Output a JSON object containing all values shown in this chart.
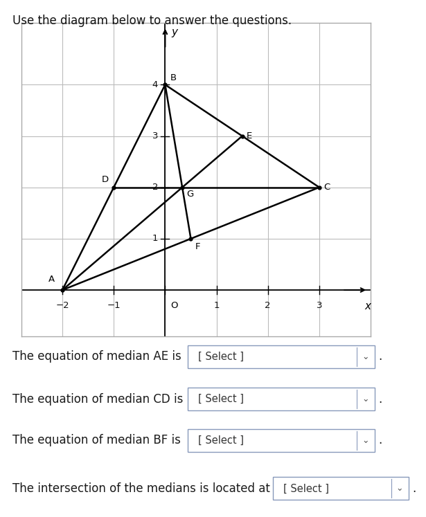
{
  "title": "Use the diagram below to answer the questions.",
  "triangle": {
    "A": [
      -2,
      0
    ],
    "B": [
      0,
      4
    ],
    "C": [
      3,
      2
    ]
  },
  "midpoints": {
    "D": [
      -1,
      2
    ],
    "E": [
      1.5,
      3
    ],
    "F": [
      0.5,
      1
    ]
  },
  "centroid_G": [
    0.3333,
    2.0
  ],
  "xlim": [
    -2.8,
    4.0
  ],
  "ylim": [
    -0.9,
    5.2
  ],
  "xticks": [
    -2,
    -1,
    0,
    1,
    2,
    3
  ],
  "yticks": [
    1,
    2,
    3,
    4
  ],
  "xlabel": "x",
  "ylabel": "y",
  "grid_color": "#bbbbbb",
  "line_color": "#000000",
  "label_fontsize": 9.5,
  "axis_label_fontsize": 11,
  "bg_color": "#ffffff",
  "plot_bg_color": "#ffffff",
  "questions": [
    "The equation of median AE is",
    "The equation of median CD is",
    "The equation of median BF is",
    "The intersection of the medians is located at"
  ],
  "select_label": "[ Select ]",
  "question_fontsize": 12,
  "title_fontsize": 12
}
